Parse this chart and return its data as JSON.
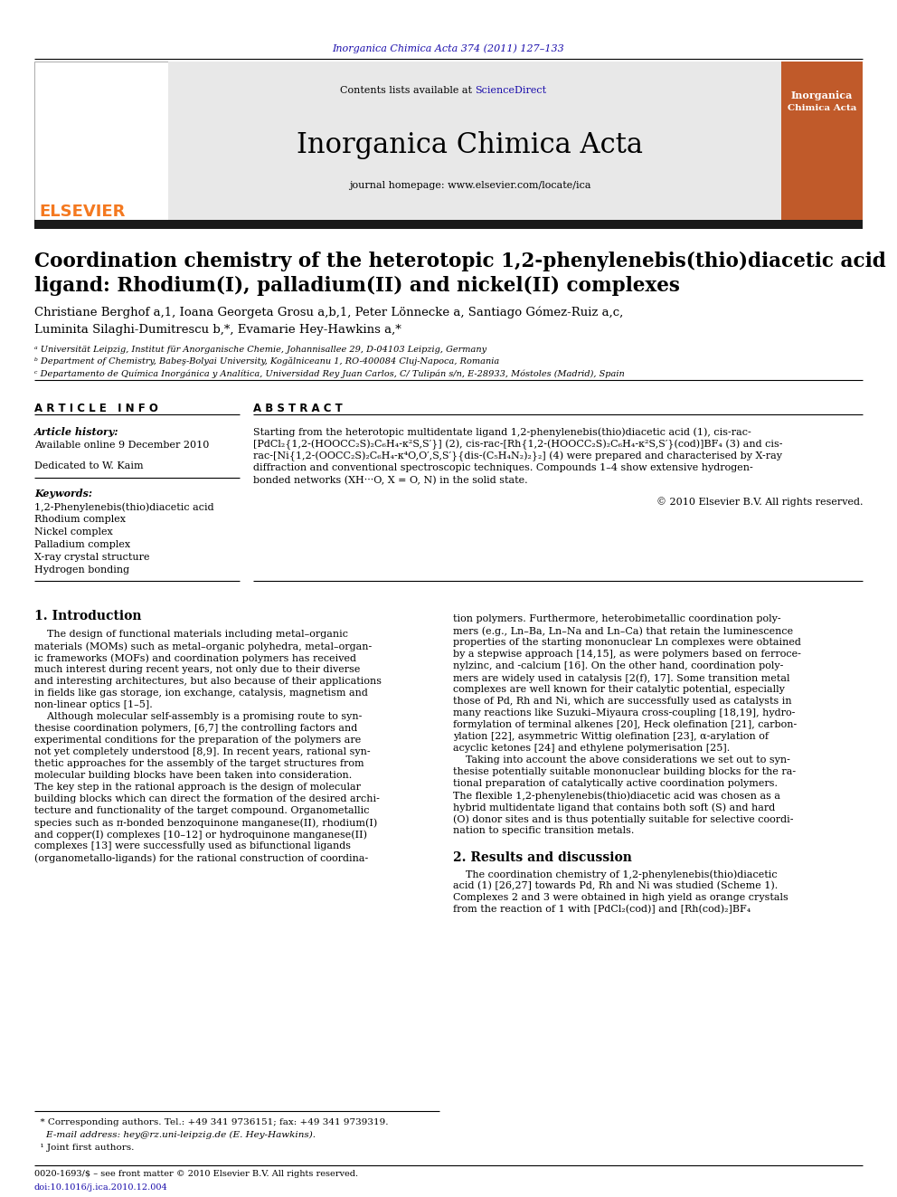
{
  "page_width": 9.92,
  "page_height": 13.23,
  "dpi": 100,
  "background_color": "#ffffff",
  "top_journal_ref": "Inorganica Chimica Acta 374 (2011) 127–133",
  "top_journal_ref_color": "#1a0dab",
  "header_bg": "#e8e8e8",
  "header_journal_name": "Inorganica Chimica Acta",
  "header_content_text": "Contents lists available at ",
  "header_sciencedirect": "ScienceDirect",
  "header_sciencedirect_color": "#1a0dab",
  "header_homepage": "journal homepage: www.elsevier.com/locate/ica",
  "thick_bar_color": "#1a1a1a",
  "article_title_line1": "Coordination chemistry of the heterotopic 1,2-phenylenebis(thio)diacetic acid",
  "article_title_line2": "ligand: Rhodium(I), palladium(II) and nickel(II) complexes",
  "authors_line1": "Christiane Berghof a,1, Ioana Georgeta Grosu a,b,1, Peter Lönnecke a, Santiago Gómez-Ruiz a,c,",
  "authors_line2": "Luminita Silaghi-Dumitrescu b,*, Evamarie Hey-Hawkins a,*",
  "affil_a": "ᵃ Universität Leipzig, Institut für Anorganische Chemie, Johannisallee 29, D-04103 Leipzig, Germany",
  "affil_b": "ᵇ Department of Chemistry, Babeş-Bolyai University, Kogălniceanu 1, RO-400084 Cluj-Napoca, Romania",
  "affil_c": "ᶜ Departamento de Química Inorgánica y Analítica, Universidad Rey Juan Carlos, C/ Tulipán s/n, E-28933, Móstoles (Madrid), Spain",
  "article_info_header": "A R T I C L E   I N F O",
  "abstract_header": "A B S T R A C T",
  "article_history_label": "Article history:",
  "available_online": "Available online 9 December 2010",
  "dedicated": "Dedicated to W. Kaim",
  "keywords_label": "Keywords:",
  "keywords": [
    "1,2-Phenylenebis(thio)diacetic acid",
    "Rhodium complex",
    "Nickel complex",
    "Palladium complex",
    "X-ray crystal structure",
    "Hydrogen bonding"
  ],
  "abstract_lines": [
    "Starting from the heterotopic multidentate ligand 1,2-phenylenebis(thio)diacetic acid (1), cis-rac-",
    "[PdCl₂{1,2-(HOOCC₂S)₂C₆H₄-κ²S,S′}] (2), cis-rac-[Rh{1,2-(HOOCC₂S)₂C₆H₄-κ²S,S′}(cod)]BF₄ (3) and cis-",
    "rac-[Ni{1,2-(OOCC₂S)₂C₆H₄-κ⁴O,O′,S,S′}{dis-(C₅H₄N₂)₂}₂] (4) were prepared and characterised by X-ray",
    "diffraction and conventional spectroscopic techniques. Compounds 1–4 show extensive hydrogen-",
    "bonded networks (XH···O, X = O, N) in the solid state."
  ],
  "copyright_text": "© 2010 Elsevier B.V. All rights reserved.",
  "intro_header": "1. Introduction",
  "intro_col1_lines": [
    "    The design of functional materials including metal–organic",
    "materials (MOMs) such as metal–organic polyhedra, metal–organ-",
    "ic frameworks (MOFs) and coordination polymers has received",
    "much interest during recent years, not only due to their diverse",
    "and interesting architectures, but also because of their applications",
    "in fields like gas storage, ion exchange, catalysis, magnetism and",
    "non-linear optics [1–5].",
    "    Although molecular self-assembly is a promising route to syn-",
    "thesise coordination polymers, [6,7] the controlling factors and",
    "experimental conditions for the preparation of the polymers are",
    "not yet completely understood [8,9]. In recent years, rational syn-",
    "thetic approaches for the assembly of the target structures from",
    "molecular building blocks have been taken into consideration.",
    "The key step in the rational approach is the design of molecular",
    "building blocks which can direct the formation of the desired archi-",
    "tecture and functionality of the target compound. Organometallic",
    "species such as π-bonded benzoquinone manganese(II), rhodium(I)",
    "and copper(I) complexes [10–12] or hydroquinone manganese(II)",
    "complexes [13] were successfully used as bifunctional ligands",
    "(organometallo-ligands) for the rational construction of coordina-"
  ],
  "intro_col2_lines": [
    "tion polymers. Furthermore, heterobimetallic coordination poly-",
    "mers (e.g., Ln–Ba, Ln–Na and Ln–Ca) that retain the luminescence",
    "properties of the starting mononuclear Ln complexes were obtained",
    "by a stepwise approach [14,15], as were polymers based on ferroce-",
    "nylzinc, and -calcium [16]. On the other hand, coordination poly-",
    "mers are widely used in catalysis [2(f), 17]. Some transition metal",
    "complexes are well known for their catalytic potential, especially",
    "those of Pd, Rh and Ni, which are successfully used as catalysts in",
    "many reactions like Suzuki–Miyaura cross-coupling [18,19], hydro-",
    "formylation of terminal alkenes [20], Heck olefination [21], carbon-",
    "ylation [22], asymmetric Wittig olefination [23], α-arylation of",
    "acyclic ketones [24] and ethylene polymerisation [25].",
    "    Taking into account the above considerations we set out to syn-",
    "thesise potentially suitable mononuclear building blocks for the ra-",
    "tional preparation of catalytically active coordination polymers.",
    "The flexible 1,2-phenylenebis(thio)diacetic acid was chosen as a",
    "hybrid multidentate ligand that contains both soft (S) and hard",
    "(O) donor sites and is thus potentially suitable for selective coordi-",
    "nation to specific transition metals."
  ],
  "results_header": "2. Results and discussion",
  "results_col2_lines": [
    "    The coordination chemistry of 1,2-phenylenebis(thio)diacetic",
    "acid (1) [26,27] towards Pd, Rh and Ni was studied (Scheme 1).",
    "Complexes 2 and 3 were obtained in high yield as orange crystals",
    "from the reaction of 1 with [PdCl₂(cod)] and [Rh(cod)₂]BF₄"
  ],
  "footnote_star": "  * Corresponding authors. Tel.: +49 341 9736151; fax: +49 341 9739319.",
  "footnote_email": "    E-mail address: hey@rz.uni-leipzig.de (E. Hey-Hawkins).",
  "footnote_1": "  ¹ Joint first authors.",
  "footer_issn": "0020-1693/$ – see front matter © 2010 Elsevier B.V. All rights reserved.",
  "footer_doi": "doi:10.1016/j.ica.2010.12.004",
  "elsevier_orange": "#f47920",
  "link_color": "#1a0dab",
  "book_cover_color": "#c05a2a"
}
